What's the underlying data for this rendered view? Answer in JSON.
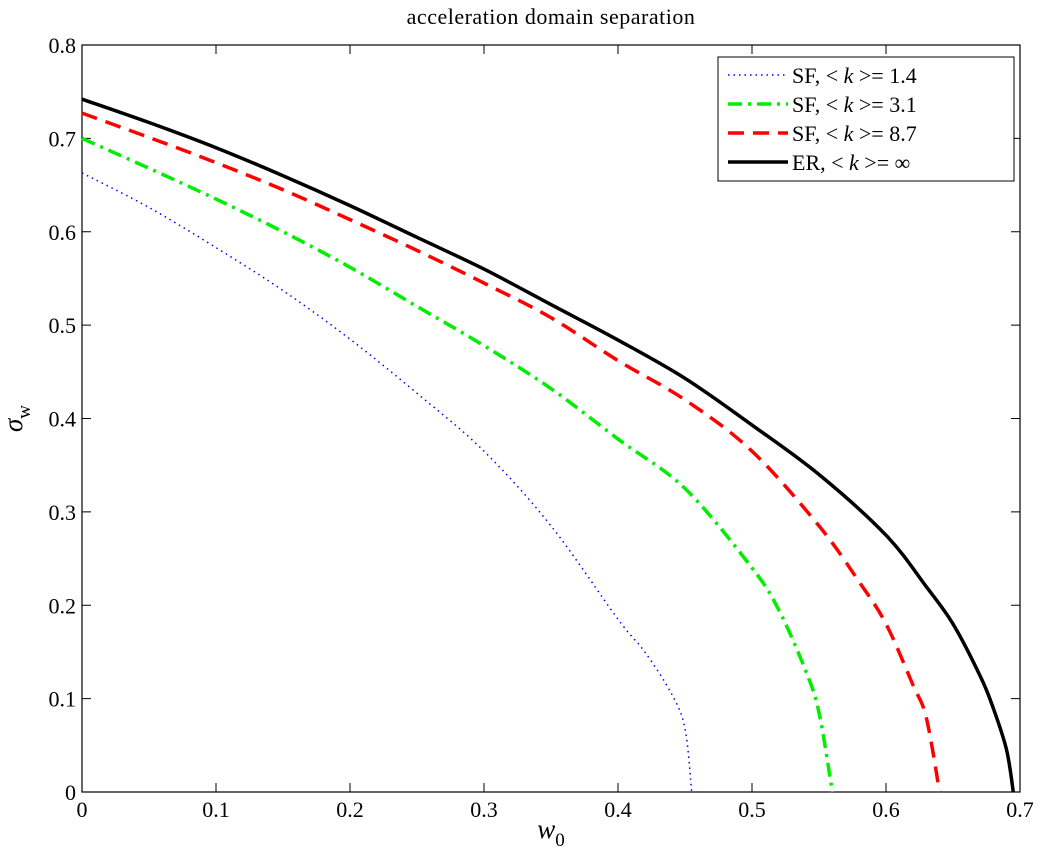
{
  "chart_data": {
    "type": "line",
    "title": "acceleration domain separation",
    "xlabel": {
      "symbol": "w",
      "subscript": "0"
    },
    "ylabel": {
      "symbol": "σ",
      "subscript": "w"
    },
    "xlim": [
      0,
      0.7
    ],
    "ylim": [
      0,
      0.8
    ],
    "xticks": [
      0,
      0.1,
      0.2,
      0.3,
      0.4,
      0.5,
      0.6,
      0.7
    ],
    "xtick_labels": [
      "0",
      "0.1",
      "0.2",
      "0.3",
      "0.4",
      "0.5",
      "0.6",
      "0.7"
    ],
    "yticks": [
      0,
      0.1,
      0.2,
      0.3,
      0.4,
      0.5,
      0.6,
      0.7,
      0.8
    ],
    "ytick_labels": [
      "0",
      "0.1",
      "0.2",
      "0.3",
      "0.4",
      "0.5",
      "0.6",
      "0.7",
      "0.8"
    ],
    "grid": false,
    "legend_position": "top-right",
    "series": [
      {
        "name": "SF, < k >= 1.4",
        "label_prefix": "SF, <",
        "label_var": "k",
        "label_suffix": ">= 1.4",
        "color": "#0000ff",
        "style": "dotted",
        "line_width": 1.5,
        "x": [
          0,
          0.05,
          0.1,
          0.15,
          0.2,
          0.25,
          0.3,
          0.35,
          0.4,
          0.42,
          0.44,
          0.45,
          0.455
        ],
        "y": [
          0.663,
          0.626,
          0.583,
          0.537,
          0.485,
          0.427,
          0.365,
          0.285,
          0.185,
          0.15,
          0.105,
          0.068,
          0
        ]
      },
      {
        "name": "SF, < k >= 3.1",
        "label_prefix": "SF, <",
        "label_var": "k",
        "label_suffix": ">= 3.1",
        "color": "#00ee00",
        "style": "dashdot",
        "line_width": 3.5,
        "x": [
          0,
          0.05,
          0.1,
          0.15,
          0.2,
          0.25,
          0.3,
          0.35,
          0.4,
          0.45,
          0.5,
          0.52,
          0.54,
          0.55,
          0.56
        ],
        "y": [
          0.7,
          0.668,
          0.635,
          0.6,
          0.562,
          0.52,
          0.478,
          0.432,
          0.378,
          0.325,
          0.24,
          0.195,
          0.13,
          0.085,
          0
        ]
      },
      {
        "name": "SF, < k >= 8.7",
        "label_prefix": "SF, <",
        "label_var": "k",
        "label_suffix": ">= 8.7",
        "color": "#ff0000",
        "style": "dashed",
        "line_width": 3.5,
        "x": [
          0,
          0.05,
          0.1,
          0.15,
          0.2,
          0.25,
          0.3,
          0.35,
          0.4,
          0.45,
          0.5,
          0.55,
          0.58,
          0.6,
          0.62,
          0.63,
          0.64
        ],
        "y": [
          0.727,
          0.701,
          0.674,
          0.645,
          0.613,
          0.58,
          0.545,
          0.508,
          0.462,
          0.42,
          0.365,
          0.285,
          0.225,
          0.18,
          0.115,
          0.08,
          0
        ]
      },
      {
        "name": "ER, < k >= ∞",
        "label_prefix": "ER, <",
        "label_var": "k",
        "label_suffix": ">= ∞",
        "color": "#000000",
        "style": "solid",
        "line_width": 3.5,
        "x": [
          0,
          0.05,
          0.1,
          0.15,
          0.2,
          0.25,
          0.3,
          0.35,
          0.4,
          0.45,
          0.5,
          0.55,
          0.6,
          0.63,
          0.65,
          0.67,
          0.68,
          0.69,
          0.695
        ],
        "y": [
          0.742,
          0.717,
          0.69,
          0.66,
          0.628,
          0.594,
          0.56,
          0.522,
          0.484,
          0.443,
          0.393,
          0.34,
          0.275,
          0.22,
          0.18,
          0.125,
          0.09,
          0.045,
          0
        ]
      }
    ]
  }
}
